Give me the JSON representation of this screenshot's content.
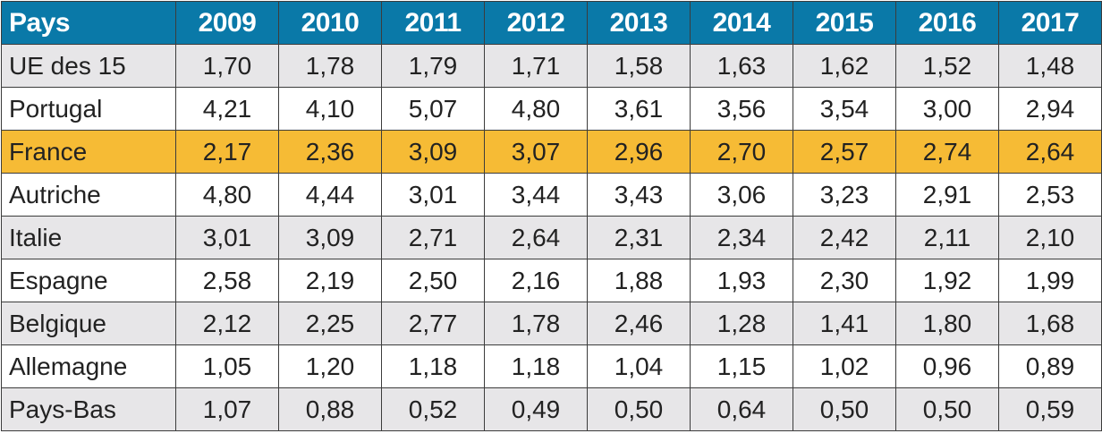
{
  "table": {
    "header_country": "Pays",
    "years": [
      "2009",
      "2010",
      "2011",
      "2012",
      "2013",
      "2014",
      "2015",
      "2016",
      "2017"
    ],
    "highlight_color": "#f6bb35",
    "header_color": "#0a79a8",
    "rows": [
      {
        "country": "UE des 15",
        "values": [
          "1,70",
          "1,78",
          "1,79",
          "1,71",
          "1,58",
          "1,63",
          "1,62",
          "1,52",
          "1,48"
        ]
      },
      {
        "country": "Portugal",
        "values": [
          "4,21",
          "4,10",
          "5,07",
          "4,80",
          "3,61",
          "3,56",
          "3,54",
          "3,00",
          "2,94"
        ]
      },
      {
        "country": "France",
        "values": [
          "2,17",
          "2,36",
          "3,09",
          "3,07",
          "2,96",
          "2,70",
          "2,57",
          "2,74",
          "2,64"
        ]
      },
      {
        "country": "Autriche",
        "values": [
          "4,80",
          "4,44",
          "3,01",
          "3,44",
          "3,43",
          "3,06",
          "3,23",
          "2,91",
          "2,53"
        ]
      },
      {
        "country": "Italie",
        "values": [
          "3,01",
          "3,09",
          "2,71",
          "2,64",
          "2,31",
          "2,34",
          "2,42",
          "2,11",
          "2,10"
        ]
      },
      {
        "country": "Espagne",
        "values": [
          "2,58",
          "2,19",
          "2,50",
          "2,16",
          "1,88",
          "1,93",
          "2,30",
          "1,92",
          "1,99"
        ]
      },
      {
        "country": "Belgique",
        "values": [
          "2,12",
          "2,25",
          "2,77",
          "1,78",
          "2,46",
          "1,28",
          "1,41",
          "1,80",
          "1,68"
        ]
      },
      {
        "country": "Allemagne",
        "values": [
          "1,05",
          "1,20",
          "1,18",
          "1,18",
          "1,04",
          "1,15",
          "1,02",
          "0,96",
          "0,89"
        ]
      },
      {
        "country": "Pays-Bas",
        "values": [
          "1,07",
          "0,88",
          "0,52",
          "0,49",
          "0,50",
          "0,64",
          "0,50",
          "0,50",
          "0,59"
        ]
      }
    ]
  }
}
